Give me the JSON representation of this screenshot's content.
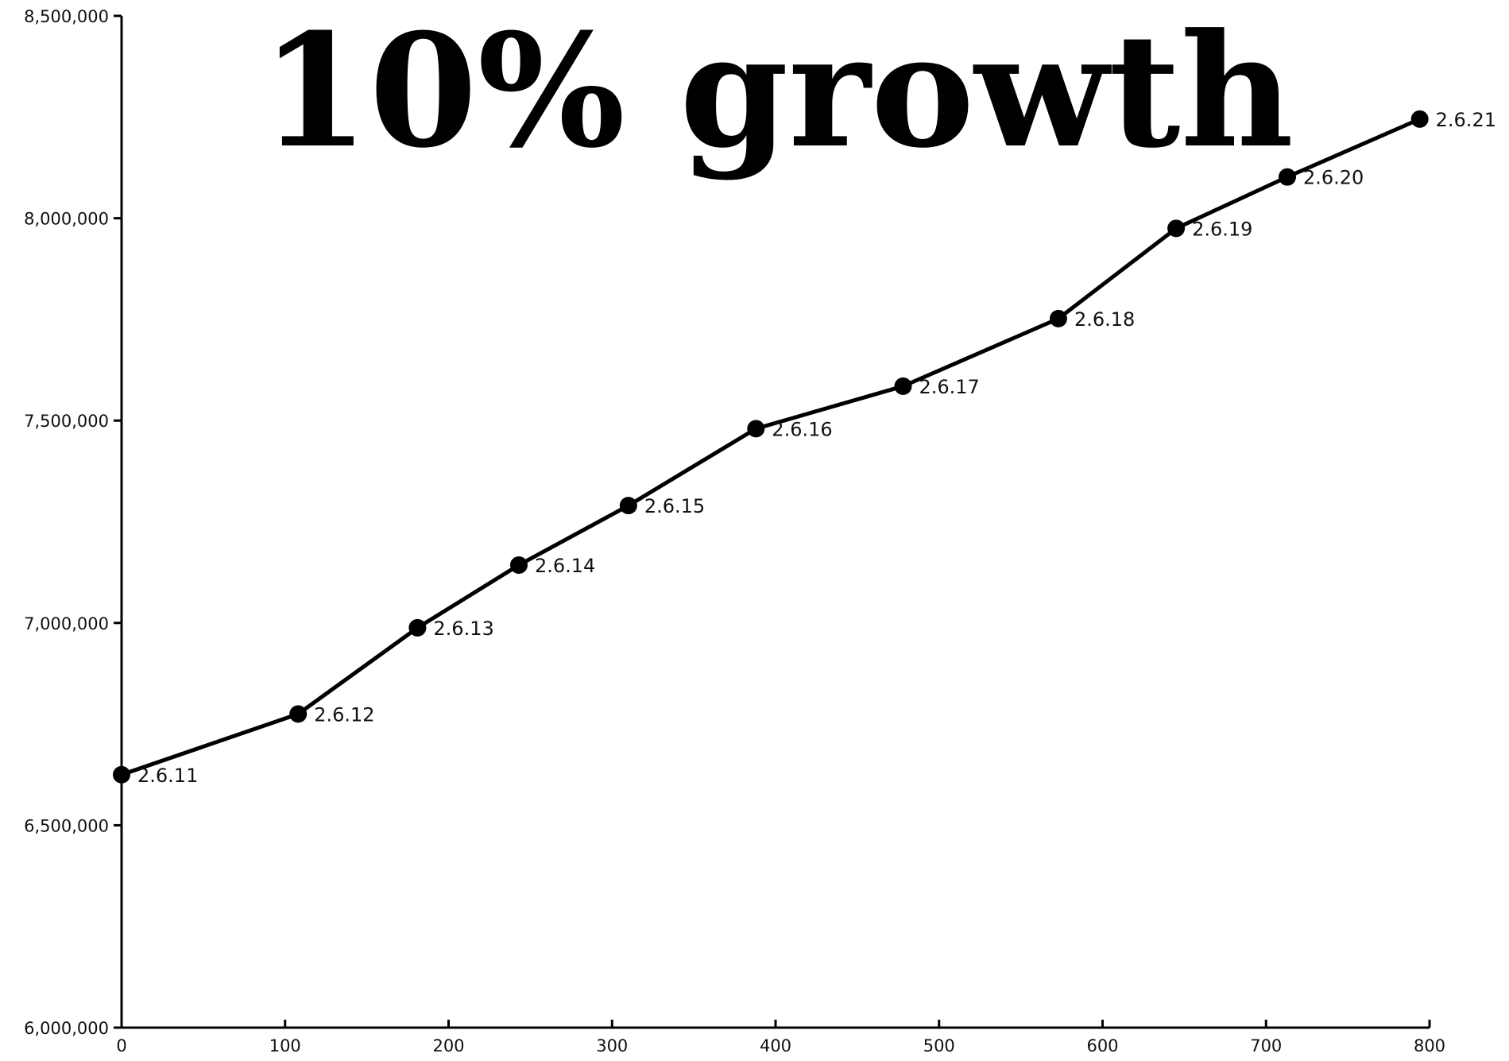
{
  "chart_data": {
    "type": "line",
    "title": "10% growth",
    "subtitle": "",
    "xlabel": "",
    "ylabel": "",
    "xlim": [
      0,
      800
    ],
    "ylim": [
      6000000,
      8500000
    ],
    "x_ticks": [
      0,
      100,
      200,
      300,
      400,
      500,
      600,
      700,
      800
    ],
    "x_tick_labels": [
      "0",
      "100",
      "200",
      "300",
      "400",
      "500",
      "600",
      "700",
      "800"
    ],
    "y_ticks": [
      6000000,
      6500000,
      7000000,
      7500000,
      8000000,
      8500000
    ],
    "y_tick_labels": [
      "6,000,000",
      "6,500,000",
      "7,000,000",
      "7,500,000",
      "8,000,000",
      "8,500,000"
    ],
    "grid": false,
    "legend": "none",
    "series": [
      {
        "color": "#000000",
        "points": [
          {
            "x": 0,
            "y": 6625000,
            "label": "2.6.11"
          },
          {
            "x": 108,
            "y": 6775000,
            "label": "2.6.12"
          },
          {
            "x": 181,
            "y": 6988000,
            "label": "2.6.13"
          },
          {
            "x": 243,
            "y": 7143000,
            "label": "2.6.14"
          },
          {
            "x": 310,
            "y": 7290000,
            "label": "2.6.15"
          },
          {
            "x": 388,
            "y": 7480000,
            "label": "2.6.16"
          },
          {
            "x": 478,
            "y": 7585000,
            "label": "2.6.17"
          },
          {
            "x": 573,
            "y": 7752000,
            "label": "2.6.18"
          },
          {
            "x": 645,
            "y": 7975000,
            "label": "2.6.19"
          },
          {
            "x": 713,
            "y": 8102000,
            "label": "2.6.20"
          },
          {
            "x": 794,
            "y": 8245000,
            "label": "2.6.21"
          }
        ]
      }
    ]
  }
}
